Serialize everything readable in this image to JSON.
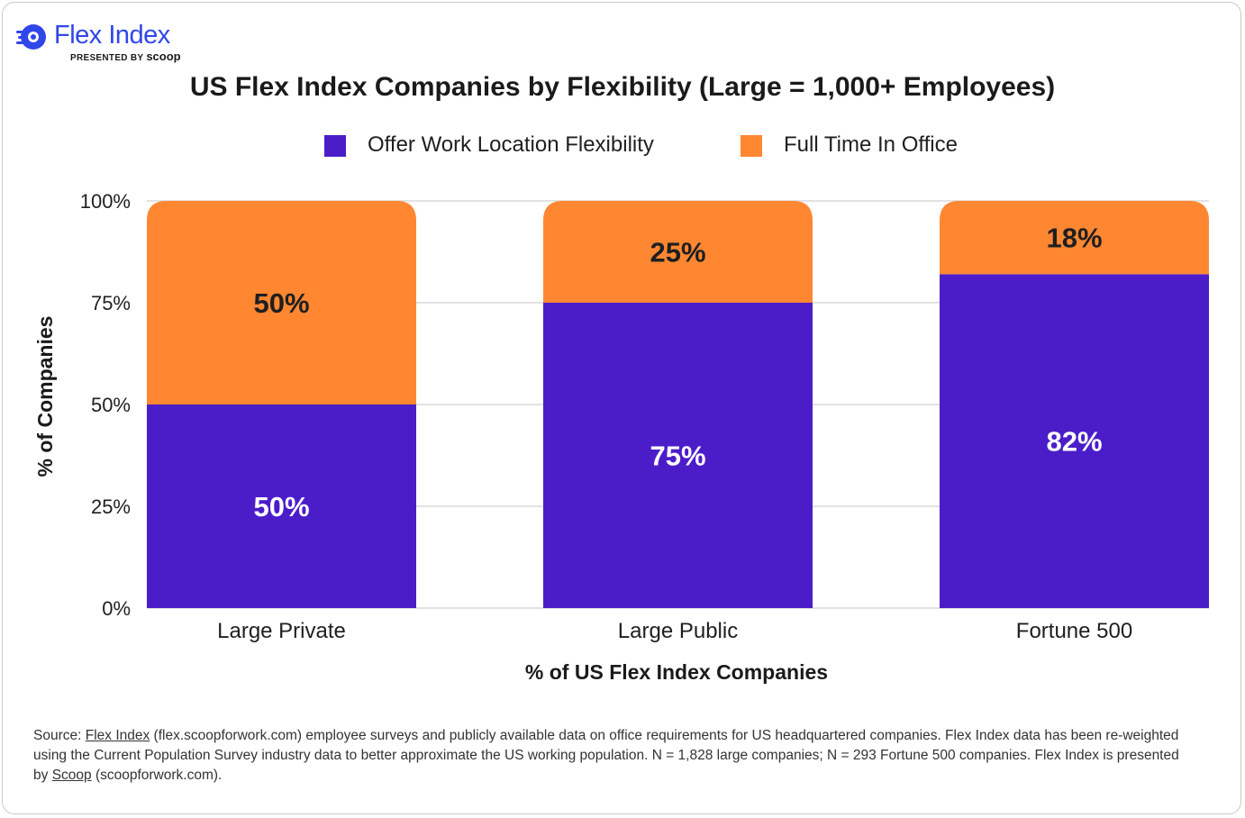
{
  "brand": {
    "name": "Flex Index",
    "presented_by": "PRESENTED BY",
    "partner": "scoop"
  },
  "chart_data": {
    "type": "bar",
    "stacked": true,
    "title": "US Flex Index Companies by Flexibility (Large = 1,000+ Employees)",
    "xlabel": "% of US Flex Index Companies",
    "ylabel": "% of Companies",
    "categories": [
      "Large Private",
      "Large Public",
      "Fortune 500"
    ],
    "series": [
      {
        "name": "Offer Work Location Flexibility",
        "values": [
          50,
          75,
          82
        ],
        "color": "#4b1dc9",
        "label_color": "#ffffff"
      },
      {
        "name": "Full Time In Office",
        "values": [
          50,
          25,
          18
        ],
        "color": "#ff8732",
        "label_color": "#1f1f1f"
      }
    ],
    "ylim": [
      0,
      100
    ],
    "yticks": [
      "0%",
      "25%",
      "50%",
      "75%",
      "100%"
    ],
    "ytick_values": [
      0,
      25,
      50,
      75,
      100
    ],
    "data_labels": [
      [
        "50%",
        "75%",
        "82%"
      ],
      [
        "50%",
        "25%",
        "18%"
      ]
    ],
    "grid": true,
    "legend_position": "top-center"
  },
  "source": {
    "prefix": "Source: ",
    "link1": "Flex Index",
    "middle": " (flex.scoopforwork.com) employee surveys and publicly available data on office requirements for US headquartered companies. Flex Index data has been re-weighted using the Current Population Survey industry data to better approximate the US working population. N = 1,828 large companies; N = 293 Fortune 500 companies. Flex Index is presented by ",
    "link2": "Scoop",
    "suffix": " (scoopforwork.com)."
  }
}
